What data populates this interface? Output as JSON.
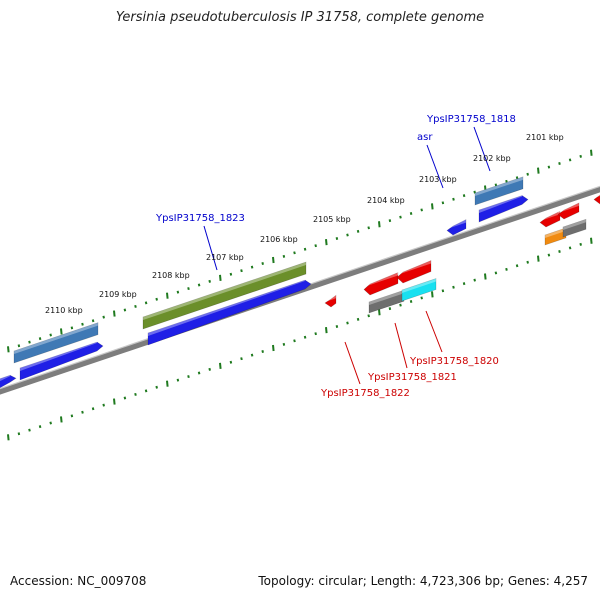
{
  "title": "Yersinia pseudotuberculosis IP 31758, complete genome",
  "footer": {
    "accession": "Accession: NC_009708",
    "summary": "Topology: circular; Length: 4,723,306 bp; Genes: 4,257"
  },
  "colors": {
    "backbone": "#8a8a8a",
    "tick": "#1f7a1f",
    "blue_gene": "#1f1fe6",
    "steel_gene": "#3f79b5",
    "olive_gene": "#6b8f2a",
    "red_gene": "#e60000",
    "gray_gene": "#6e6e6e",
    "cyan_gene": "#19e0f0",
    "orange_gene": "#f08a10",
    "label_blue": "#0000cc",
    "label_red": "#cc0000"
  },
  "ruler": {
    "ticks": [
      {
        "label": "2101 kbp"
      },
      {
        "label": "2102 kbp"
      },
      {
        "label": "2103 kbp"
      },
      {
        "label": "2104 kbp"
      },
      {
        "label": "2105 kbp"
      },
      {
        "label": "2106 kbp"
      },
      {
        "label": "2107 kbp"
      },
      {
        "label": "2108 kbp"
      },
      {
        "label": "2109 kbp"
      },
      {
        "label": "2110 kbp"
      }
    ]
  },
  "gene_labels": [
    {
      "id": "ypsip31758-1818",
      "text": "YpsIP31758_1818",
      "color": "blue"
    },
    {
      "id": "asr",
      "text": "asr",
      "color": "blue"
    },
    {
      "id": "ypsip31758-1823",
      "text": "YpsIP31758_1823",
      "color": "blue"
    },
    {
      "id": "ypsip31758-1820",
      "text": "YpsIP31758_1820",
      "color": "red"
    },
    {
      "id": "ypsip31758-1821",
      "text": "YpsIP31758_1821",
      "color": "red"
    },
    {
      "id": "ypsip31758-1822",
      "text": "YpsIP31758_1822",
      "color": "red"
    }
  ]
}
